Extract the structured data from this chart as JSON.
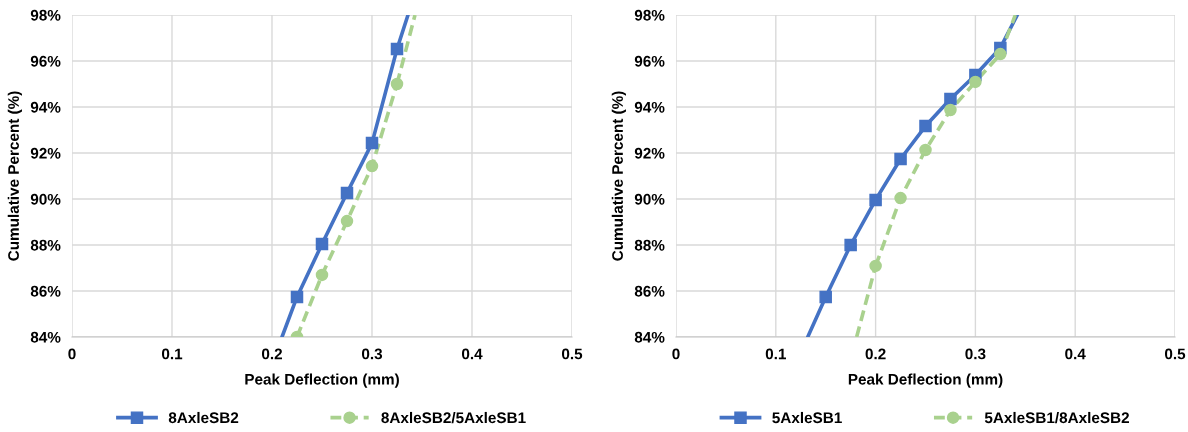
{
  "chart_data": [
    {
      "type": "line",
      "xlabel": "Peak Deflection (mm)",
      "ylabel": "Cumulative Percent (%)",
      "xlim": [
        0,
        0.5
      ],
      "xticks": [
        0,
        0.1,
        0.2,
        0.3,
        0.4,
        0.5
      ],
      "ylim": [
        84,
        98
      ],
      "yticks": [
        {
          "value": 84,
          "label": "84%"
        },
        {
          "value": 86,
          "label": "86%"
        },
        {
          "value": 88,
          "label": "88%"
        },
        {
          "value": 90,
          "label": "90%"
        },
        {
          "value": 92,
          "label": "92%"
        },
        {
          "value": 94,
          "label": "94%"
        },
        {
          "value": 96,
          "label": "96%"
        },
        {
          "value": 98,
          "label": "98%"
        }
      ],
      "grid": true,
      "legend": "bottom",
      "series": [
        {
          "name": "8AxleSB2",
          "color": "#4472c4",
          "marker": "square",
          "line_style": "solid",
          "x": [
            0.225,
            0.25,
            0.275,
            0.3,
            0.325
          ],
          "values": [
            85.74,
            88.04,
            90.26,
            92.43,
            96.52
          ]
        },
        {
          "name": "8AxleSB2/5AxleSB1",
          "color": "#a9d18e",
          "marker": "circle",
          "line_style": "dashed",
          "x": [
            0.225,
            0.25,
            0.275,
            0.3,
            0.325
          ],
          "values": [
            84.0,
            86.7,
            89.04,
            91.43,
            95.0
          ]
        },
        {
          "color": "#4472c4",
          "marker": "none",
          "line_style": "solid",
          "x": [
            0.21,
            0.225,
            0.27,
            0.325,
            0.336
          ],
          "values": [
            84,
            85.74,
            null,
            96.52,
            98
          ]
        },
        {
          "color": "#a9d18e",
          "marker": "none",
          "line_style": "dashed",
          "x": [
            0.325,
            0.343
          ],
          "values": [
            95.0,
            98
          ]
        }
      ]
    },
    {
      "type": "line",
      "xlabel": "Peak Deflection (mm)",
      "ylabel": "Cumulative Percent (%)",
      "xlim": [
        0,
        0.5
      ],
      "xticks": [
        0,
        0.1,
        0.2,
        0.3,
        0.4,
        0.5
      ],
      "ylim": [
        84,
        98
      ],
      "yticks": [
        {
          "value": 84,
          "label": "84%"
        },
        {
          "value": 86,
          "label": "86%"
        },
        {
          "value": 88,
          "label": "88%"
        },
        {
          "value": 90,
          "label": "90%"
        },
        {
          "value": 92,
          "label": "92%"
        },
        {
          "value": 94,
          "label": "94%"
        },
        {
          "value": 96,
          "label": "96%"
        },
        {
          "value": 98,
          "label": "98%"
        }
      ],
      "grid": true,
      "legend": "bottom",
      "series": [
        {
          "name": "5AxleSB1",
          "color": "#4472c4",
          "marker": "square",
          "line_style": "solid",
          "x": [
            0.15,
            0.175,
            0.2,
            0.225,
            0.25,
            0.275,
            0.3,
            0.325
          ],
          "values": [
            85.74,
            88.0,
            89.96,
            91.74,
            93.17,
            94.35,
            95.39,
            96.57
          ]
        },
        {
          "name": "5AxleSB1/8AxleSB2",
          "color": "#a9d18e",
          "marker": "circle",
          "line_style": "dashed",
          "x": [
            0.2,
            0.225,
            0.25,
            0.275,
            0.3,
            0.325
          ],
          "values": [
            87.09,
            90.04,
            92.13,
            93.87,
            95.09,
            96.3
          ]
        },
        {
          "color": "#4472c4",
          "marker": "none",
          "line_style": "solid",
          "x": [
            0.132,
            0.15,
            0.24,
            0.325,
            0.342
          ],
          "values": [
            84,
            85.74,
            null,
            96.57,
            98
          ]
        },
        {
          "color": "#a9d18e",
          "marker": "none",
          "line_style": "dashed",
          "x": [
            0.181,
            0.2,
            0.26,
            0.325,
            0.34
          ],
          "values": [
            84,
            87.09,
            null,
            96.3,
            98
          ]
        }
      ]
    }
  ]
}
